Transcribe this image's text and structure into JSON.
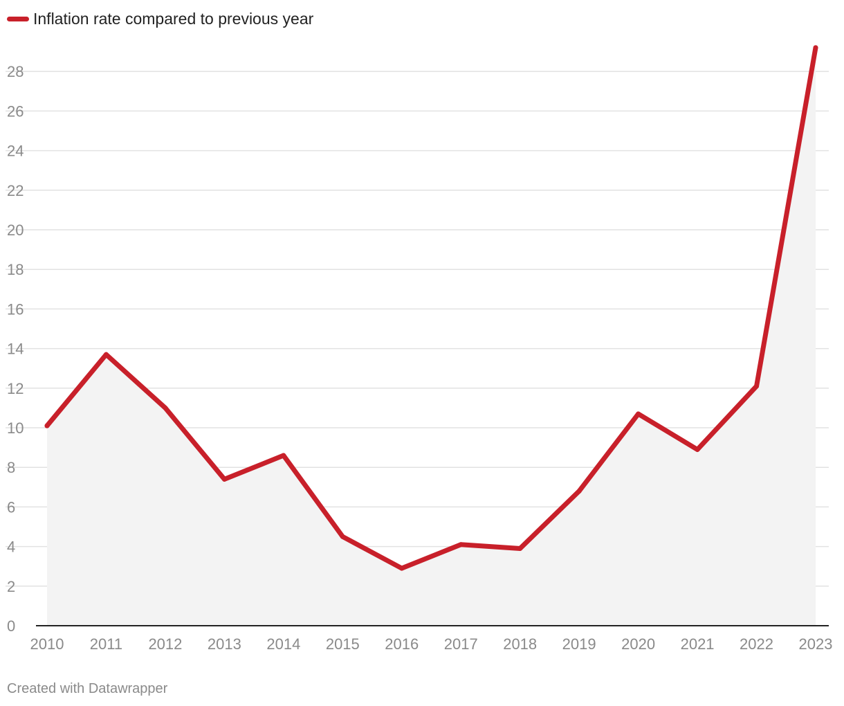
{
  "legend": {
    "label": "Inflation rate compared to previous year",
    "color": "#c8202a"
  },
  "footer": {
    "credit": "Created with Datawrapper"
  },
  "colors": {
    "line": "#c8202a",
    "area": "#f3f3f3",
    "grid": "#e2e2e2",
    "axis": "#222222",
    "tick_text": "#8a8a8a"
  },
  "chart_data": {
    "type": "area",
    "title": "",
    "xlabel": "",
    "ylabel": "",
    "x": [
      "2010",
      "2011",
      "2012",
      "2013",
      "2014",
      "2015",
      "2016",
      "2017",
      "2018",
      "2019",
      "2020",
      "2021",
      "2022",
      "2023"
    ],
    "series": [
      {
        "name": "Inflation rate compared to previous year",
        "values": [
          10.1,
          13.7,
          11.0,
          7.4,
          8.6,
          4.5,
          2.9,
          4.1,
          3.9,
          6.8,
          10.7,
          8.9,
          12.1,
          29.2
        ]
      }
    ],
    "ylim": [
      0,
      29.2
    ],
    "yticks": [
      0,
      2,
      4,
      6,
      8,
      10,
      12,
      14,
      16,
      18,
      20,
      22,
      24,
      26,
      28
    ],
    "grid": true,
    "legend_position": "top-left"
  }
}
